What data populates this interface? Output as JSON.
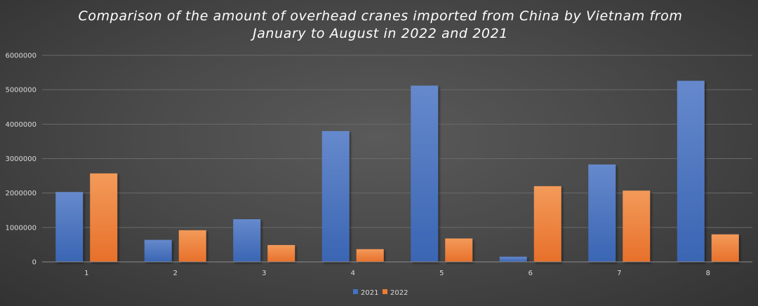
{
  "chart_data": {
    "type": "bar",
    "title_lines": [
      "Comparison of the amount of overhead cranes imported from China by Vietnam from",
      "January to August in 2022 and 2021"
    ],
    "xlabel": "",
    "ylabel": "",
    "categories": [
      "1",
      "2",
      "3",
      "4",
      "5",
      "6",
      "7",
      "8"
    ],
    "series": [
      {
        "name": "2021",
        "color": "#4472c4",
        "values": [
          2030000,
          640000,
          1240000,
          3800000,
          5120000,
          150000,
          2830000,
          5260000
        ]
      },
      {
        "name": "2022",
        "color": "#ed7d31",
        "values": [
          2570000,
          920000,
          490000,
          370000,
          680000,
          2200000,
          2070000,
          800000
        ]
      }
    ],
    "ylim": [
      0,
      6000000
    ],
    "yticks": [
      "0",
      "1000000",
      "2000000",
      "3000000",
      "4000000",
      "5000000",
      "6000000"
    ],
    "grid": true,
    "legend_position": "bottom-center"
  }
}
